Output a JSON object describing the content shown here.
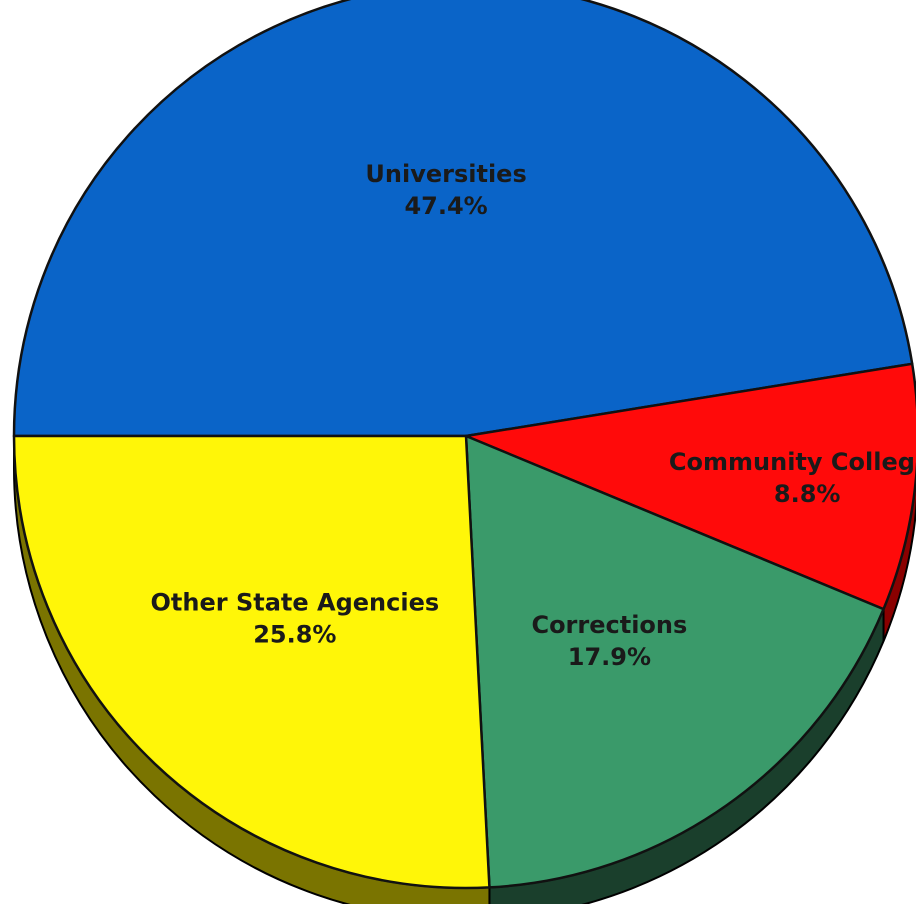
{
  "chart_data": {
    "type": "pie",
    "title": "",
    "three_d": true,
    "slices": [
      {
        "label": "Universities",
        "value_label": "47.4%",
        "value": 47.4,
        "color": "#0A64C8",
        "side_color": "#053a78"
      },
      {
        "label": "Community Colleges",
        "value_label": "8.8%",
        "value": 8.8,
        "color": "#FF0A0A",
        "side_color": "#8a0000"
      },
      {
        "label": "Corrections",
        "value_label": "17.9%",
        "value": 17.9,
        "color": "#3A9A6A",
        "side_color": "#1a3f2c"
      },
      {
        "label": "Other State Agencies",
        "value_label": "25.8%",
        "value": 25.8,
        "color": "#FFF608",
        "side_color": "#7a7400"
      }
    ]
  }
}
